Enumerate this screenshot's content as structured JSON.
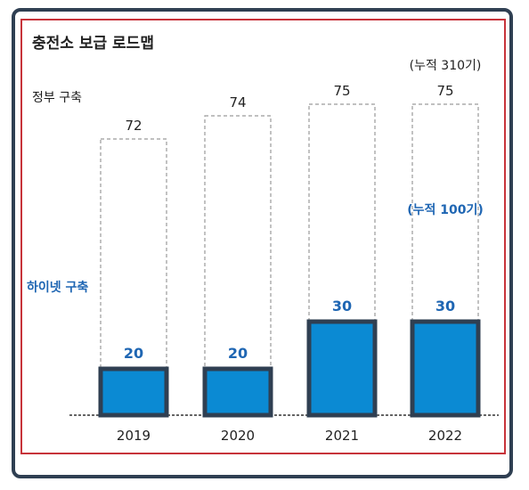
{
  "chart_data": {
    "type": "bar",
    "title": "충전소 보급 로드맵",
    "categories": [
      "2019",
      "2020",
      "2021",
      "2022"
    ],
    "series": [
      {
        "name": "정부 구축",
        "values": [
          72,
          74,
          75,
          75
        ],
        "color": "#ffffff",
        "border": "#9a9a9a"
      },
      {
        "name": "하이넷 구축",
        "values": [
          20,
          20,
          30,
          30
        ],
        "color": "#0b8ad3",
        "border": "#2f3f52"
      }
    ],
    "annotations": [
      {
        "text": "(누적 310기)",
        "category": "2022",
        "series": "정부 구축"
      },
      {
        "text": "(누적 100기)",
        "category": "2022",
        "series": "하이넷 구축"
      }
    ],
    "legend": "left",
    "grid": false
  }
}
